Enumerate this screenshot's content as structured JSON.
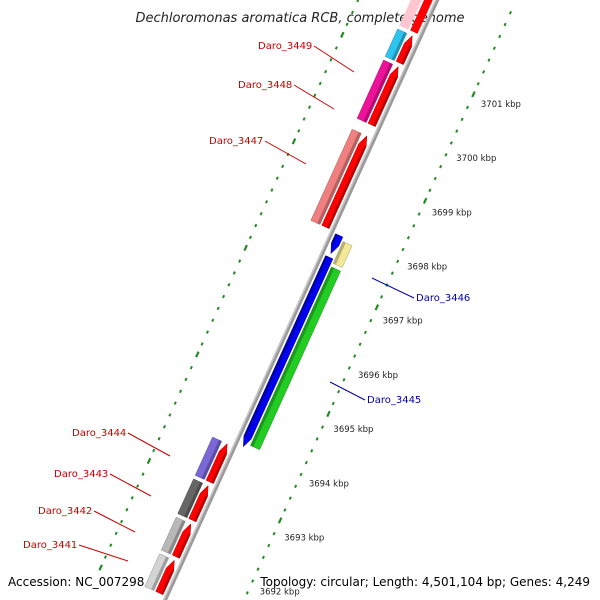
{
  "title": "Dechloromonas aromatica RCB, complete genome",
  "footer": {
    "accession": "Accession: NC_007298",
    "summary": "Topology: circular; Length: 4,501,104 bp; Genes: 4,249"
  },
  "colors": {
    "forward_label": "#cc0000",
    "reverse_label": "#0000aa",
    "tick": "#228B22",
    "backbone": "#9a9a9a"
  },
  "ticks": [
    {
      "label": "3692 kbp",
      "value": 3692
    },
    {
      "label": "3693 kbp",
      "value": 3693
    },
    {
      "label": "3694 kbp",
      "value": 3694
    },
    {
      "label": "3695 kbp",
      "value": 3695
    },
    {
      "label": "3696 kbp",
      "value": 3696
    },
    {
      "label": "3697 kbp",
      "value": 3697
    },
    {
      "label": "3698 kbp",
      "value": 3698
    },
    {
      "label": "3699 kbp",
      "value": 3699
    },
    {
      "label": "3700 kbp",
      "value": 3700
    },
    {
      "label": "3701 kbp",
      "value": 3701
    }
  ],
  "genes": [
    {
      "name": "Daro_3441",
      "strand": "forward",
      "label_side": "left",
      "color": "#d4d4d4"
    },
    {
      "name": "Daro_3442",
      "strand": "forward",
      "label_side": "left",
      "color": "#b8b8b8"
    },
    {
      "name": "Daro_3443",
      "strand": "forward",
      "label_side": "left",
      "color": "#666666"
    },
    {
      "name": "Daro_3444",
      "strand": "forward",
      "label_side": "left",
      "color": "#7b68d8"
    },
    {
      "name": "Daro_3445",
      "strand": "reverse",
      "label_side": "right",
      "color": "#22cc22"
    },
    {
      "name": "Daro_3446",
      "strand": "reverse",
      "label_side": "right",
      "color": "#f2e898"
    },
    {
      "name": "Daro_3447",
      "strand": "forward",
      "label_side": "left",
      "color": "#f08080"
    },
    {
      "name": "Daro_3448",
      "strand": "forward",
      "label_side": "left",
      "color": "#ee1199"
    },
    {
      "name": "Daro_3449",
      "strand": "forward",
      "label_side": "left",
      "color": "#2ec4f0"
    }
  ],
  "cds_color": "#ff0000",
  "reverse_cds_color": "#0000ee"
}
